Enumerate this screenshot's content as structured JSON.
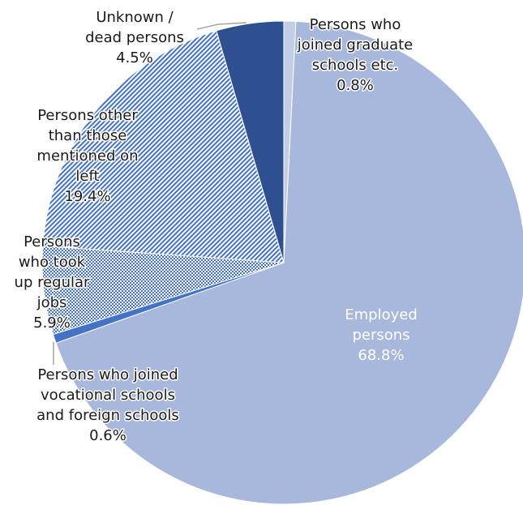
{
  "chart_data": {
    "type": "pie",
    "title": "",
    "slices": [
      {
        "name": "Persons who joined graduate schools etc.",
        "label_lines": [
          "Persons who",
          "joined graduate",
          "schools etc."
        ],
        "value": 0.8,
        "value_label": "0.8%",
        "fill": "#c3cde6",
        "pattern": "solid"
      },
      {
        "name": "Employed persons",
        "label_lines": [
          "Employed",
          "persons"
        ],
        "value": 68.8,
        "value_label": "68.8%",
        "fill": "#a8b7dc",
        "pattern": "solid"
      },
      {
        "name": "Persons who joined vocational schools and foreign schools",
        "label_lines": [
          "Persons who joined",
          "vocational schools",
          "and foreign schools"
        ],
        "value": 0.6,
        "value_label": "0.6%",
        "fill": "#4472c4",
        "pattern": "solid"
      },
      {
        "name": "Persons who took up regular jobs",
        "label_lines": [
          "Persons",
          "who took",
          "up regular",
          "jobs"
        ],
        "value": 5.9,
        "value_label": "5.9%",
        "fill": "#4472c4",
        "pattern": "dots"
      },
      {
        "name": "Persons other than those mentioned on left",
        "label_lines": [
          "Persons other",
          "than those",
          "mentioned on",
          "left"
        ],
        "value": 19.4,
        "value_label": "19.4%",
        "fill": "#4472c4",
        "pattern": "diag"
      },
      {
        "name": "Unknown / dead persons",
        "label_lines": [
          "Unknown /",
          "dead persons"
        ],
        "value": 4.5,
        "value_label": "4.5%",
        "fill": "#2f5090",
        "pattern": "solid"
      }
    ]
  }
}
